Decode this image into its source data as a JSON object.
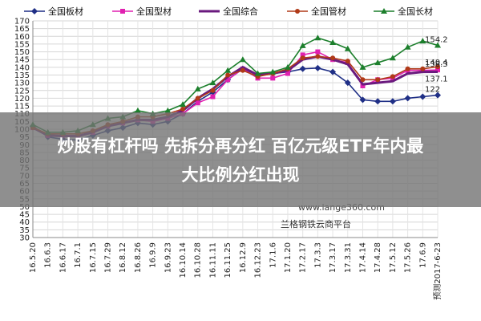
{
  "chart_data": {
    "type": "line",
    "title": "",
    "xlabel": "",
    "ylabel": "",
    "ylim": [
      30,
      170
    ],
    "yticks": [
      30,
      35,
      40,
      45,
      50,
      55,
      60,
      65,
      70,
      75,
      80,
      85,
      90,
      95,
      100,
      105,
      110,
      115,
      120,
      125,
      130,
      135,
      140,
      145,
      150,
      155,
      160,
      165,
      170
    ],
    "grid": true,
    "legend_position": "top",
    "categories": [
      "16.5.20",
      "16.6.3",
      "16.6.17",
      "16.7.1",
      "16.7.15",
      "16.7.29",
      "16.8.12",
      "16.8.26",
      "16.9.9",
      "16.9.23",
      "16.10.14",
      "16.10.28",
      "16.11.11",
      "16.11.25",
      "16.12.9",
      "16.12.23",
      "17.1.6",
      "17.1.20",
      "17.2.17",
      "17.3.3",
      "17.3.17",
      "17.3.31",
      "17.4.14",
      "17.4.28",
      "17.5.12",
      "17.5.26",
      "17.6.9",
      "预测2017-6-23"
    ],
    "series": [
      {
        "name": "全国板材",
        "color": "#1f2f86",
        "marker": "diamond",
        "values": [
          102,
          95,
          93.5,
          93,
          96,
          99,
          101,
          104,
          103,
          105,
          110,
          118,
          124,
          132,
          139,
          135,
          136,
          137,
          139,
          139.5,
          137,
          130,
          119,
          118,
          118,
          120,
          121,
          122
        ],
        "end_label": "122"
      },
      {
        "name": "全国型材",
        "color": "#e020b0",
        "marker": "square",
        "values": [
          101,
          96,
          96,
          96,
          98,
          102,
          104,
          106,
          105,
          107,
          110,
          117,
          121,
          132,
          139,
          133,
          133,
          136,
          148,
          150,
          145,
          143,
          128,
          132,
          133,
          138,
          138,
          138.3
        ],
        "end_label": "138.3"
      },
      {
        "name": "全国综合",
        "color": "#6a1a7e",
        "marker": "none",
        "values": [
          101,
          96,
          95.5,
          95.5,
          98,
          102,
          104,
          106,
          106,
          108,
          112,
          120,
          126,
          134,
          140,
          135,
          136,
          138,
          145,
          147,
          145,
          142,
          129,
          130,
          131,
          136,
          137,
          137.1
        ],
        "end_label": "137.1"
      },
      {
        "name": "全国管材",
        "color": "#b03a18",
        "marker": "circle",
        "values": [
          101,
          97,
          97,
          97,
          99,
          103,
          105,
          108,
          108,
          110,
          113,
          120,
          125,
          135,
          138,
          134,
          136,
          139,
          146,
          147,
          146,
          144,
          132,
          132,
          134,
          139,
          139,
          140.4
        ],
        "end_label": "140.4"
      },
      {
        "name": "全国长材",
        "color": "#1c7f2c",
        "marker": "triangle",
        "values": [
          103,
          98,
          98,
          99,
          103,
          107,
          108,
          112,
          110,
          112,
          116,
          126,
          130,
          138,
          145,
          136,
          137,
          140,
          154,
          159,
          156,
          152,
          140,
          143,
          146,
          153,
          157,
          154.2
        ],
        "end_label": "154.2"
      }
    ]
  },
  "headline": {
    "line1": "炒股有杠杆吗 先拆分再分红 百亿元级ETF年内最",
    "line2": "大比例分红出现"
  },
  "watermark": {
    "url": "www.lange360.com",
    "platform": "兰格钢铁云商平台"
  }
}
